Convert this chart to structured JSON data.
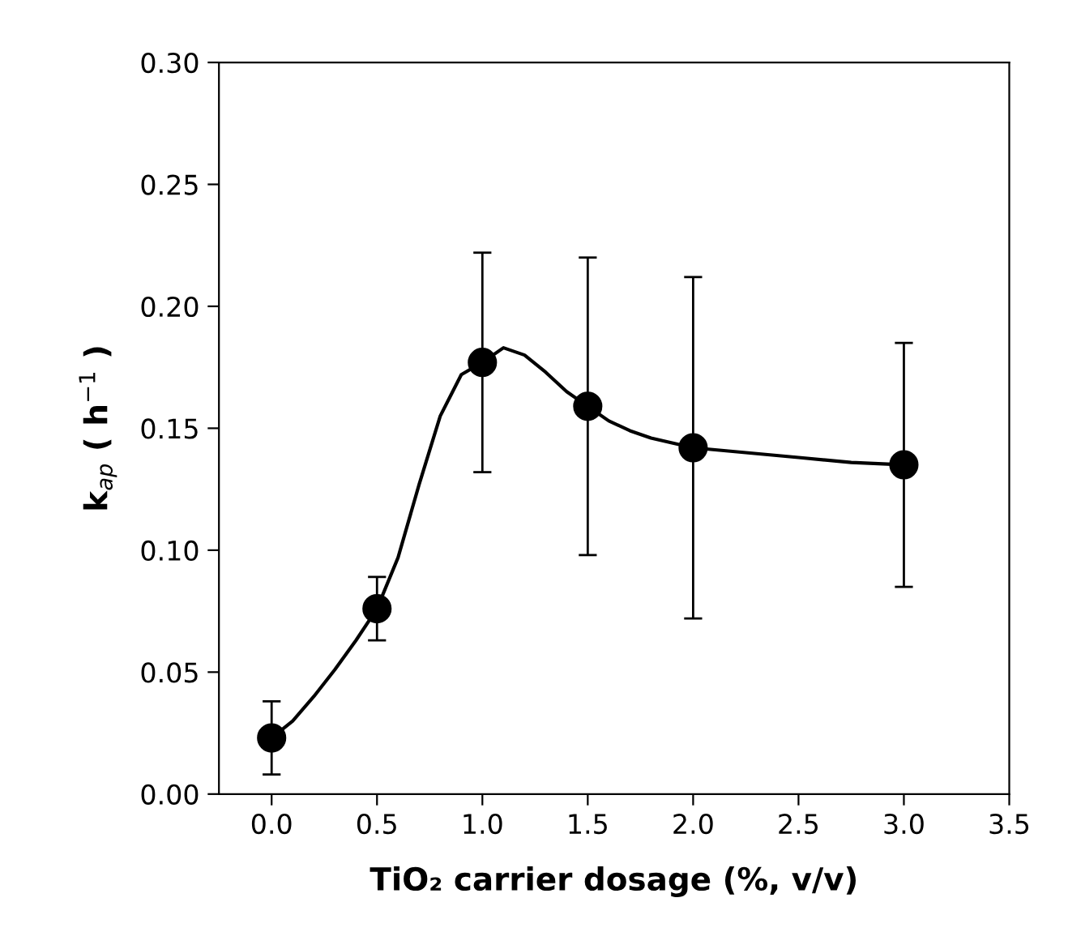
{
  "chart_data": {
    "type": "scatter",
    "xlabel": "TiO₂ carrier dosage (%, v/v)",
    "ylabel": "k$_{ap}$ ( h$^{−1}$ )",
    "x": [
      0.0,
      0.5,
      1.0,
      1.5,
      2.0,
      3.0
    ],
    "series": [
      {
        "type": "line",
        "marker": "none",
        "color": "#000000",
        "x": [
          0,
          0.1,
          0.2,
          0.3,
          0.4,
          0.5,
          0.6,
          0.7,
          0.8,
          0.9,
          1.0,
          1.1,
          1.2,
          1.3,
          1.4,
          1.5,
          1.6,
          1.7,
          1.8,
          1.9,
          2.0,
          2.25,
          2.5,
          2.75,
          3.0
        ],
        "values": [
          0.023,
          0.03,
          0.04,
          0.051,
          0.063,
          0.076,
          0.097,
          0.127,
          0.155,
          0.172,
          0.177,
          0.183,
          0.18,
          0.173,
          0.165,
          0.159,
          0.153,
          0.149,
          0.146,
          0.144,
          0.142,
          0.14,
          0.138,
          0.136,
          0.135
        ]
      },
      {
        "color": "#000000",
        "values": [
          0.023,
          0.076,
          0.177,
          0.159,
          0.142,
          0.135
        ],
        "errors": [
          [
            0.008,
            0.038
          ],
          [
            0.063,
            0.089
          ],
          [
            0.132,
            0.222
          ],
          [
            0.098,
            0.22
          ],
          [
            0.072,
            0.212
          ],
          [
            0.085,
            0.185
          ]
        ]
      }
    ],
    "xlim": [
      -0.25,
      3.5
    ],
    "xticks": [
      {
        "value": 0.0,
        "label": "0.0"
      },
      0.5,
      {
        "value": 1.0,
        "label": "1.0"
      },
      1.5,
      {
        "value": 2.0,
        "label": "2.0"
      },
      2.5,
      {
        "value": 3.0,
        "label": "3.0"
      },
      3.5
    ],
    "ylim": [
      0,
      0.3
    ],
    "yticks": [
      {
        "value": 0,
        "label": "0.00"
      },
      0.05,
      {
        "value": 0.1,
        "label": "0.10"
      },
      0.15,
      {
        "value": 0.2,
        "label": "0.20"
      },
      0.25,
      {
        "value": 0.3,
        "label": "0.30"
      }
    ],
    "marker": "circle",
    "line_style": "solid",
    "grid": false
  }
}
